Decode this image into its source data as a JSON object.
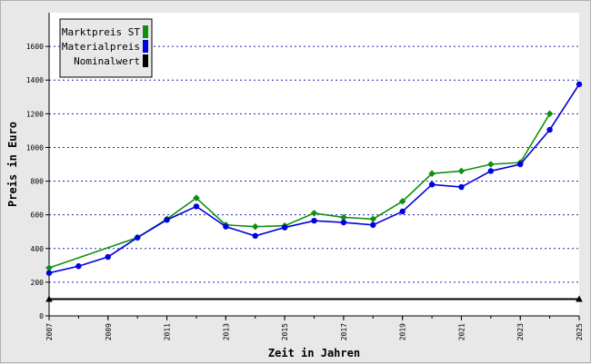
{
  "chart_data": {
    "type": "line",
    "title": "",
    "xlabel": "Zeit in Jahren",
    "ylabel": "Preis in Euro",
    "xlim": [
      2007,
      2025
    ],
    "ylim": [
      0,
      1800
    ],
    "yticks": [
      0,
      200,
      400,
      600,
      800,
      1000,
      1200,
      1400,
      1600
    ],
    "xticks": [
      2007,
      2009,
      2011,
      2013,
      2015,
      2017,
      2019,
      2021,
      2023,
      2025
    ],
    "grid": true,
    "legend_position": "top-left",
    "series": [
      {
        "name": "Marktpreis ST",
        "color": "#109010",
        "marker": "diamond",
        "x": [
          2007,
          2010,
          2011,
          2012,
          2013,
          2014,
          2015,
          2016,
          2017,
          2018,
          2019,
          2020,
          2021,
          2022,
          2023,
          2024
        ],
        "y": [
          285,
          465,
          575,
          700,
          540,
          530,
          535,
          610,
          585,
          575,
          680,
          845,
          860,
          900,
          910,
          1200
        ]
      },
      {
        "name": "Materialpreis",
        "color": "#0000e0",
        "marker": "circle",
        "x": [
          2007,
          2008,
          2009,
          2010,
          2011,
          2012,
          2013,
          2014,
          2015,
          2016,
          2017,
          2018,
          2019,
          2020,
          2021,
          2022,
          2023,
          2024,
          2025
        ],
        "y": [
          255,
          295,
          350,
          465,
          570,
          650,
          530,
          475,
          525,
          565,
          555,
          540,
          620,
          780,
          765,
          860,
          900,
          1105,
          1375
        ]
      },
      {
        "name": "Nominalwert",
        "color": "#000000",
        "marker": "triangle",
        "x": [
          2007,
          2025
        ],
        "y": [
          100,
          100
        ]
      }
    ]
  }
}
